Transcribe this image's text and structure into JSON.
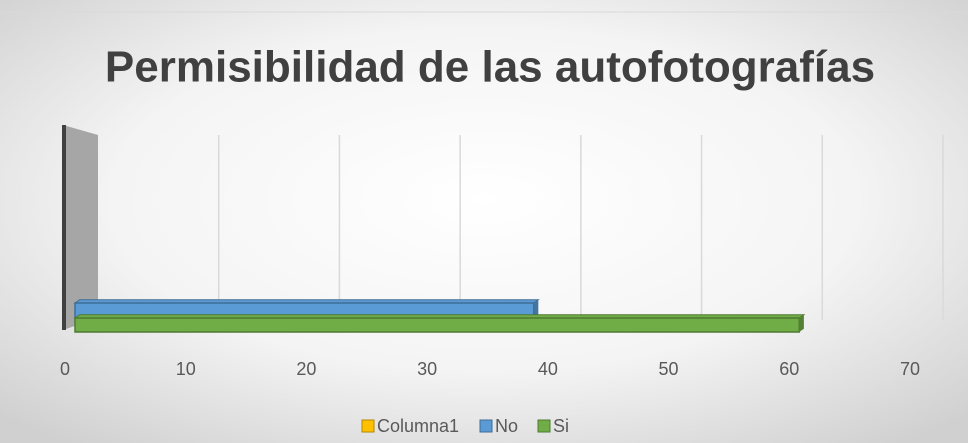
{
  "chart_data": {
    "type": "bar3d",
    "orientation": "horizontal",
    "title": "Permisibilidad de las autofotografías",
    "categories": [
      null
    ],
    "series": [
      {
        "name": "Columna1",
        "color": "#ffc000",
        "values": [
          null
        ]
      },
      {
        "name": "No",
        "color": "#5b9bd5",
        "values": [
          38
        ]
      },
      {
        "name": "Si",
        "color": "#70ad47",
        "values": [
          60
        ]
      }
    ],
    "xlim": [
      0,
      70
    ],
    "xticks": [
      0,
      10,
      20,
      30,
      40,
      50,
      60,
      70
    ],
    "grid": true,
    "legend": "bottom"
  }
}
